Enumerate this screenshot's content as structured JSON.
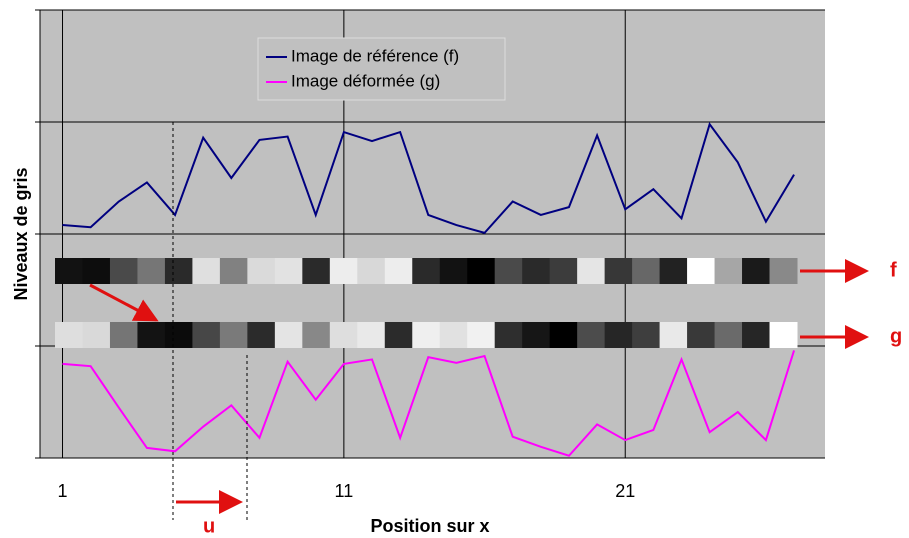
{
  "chart_data": {
    "type": "line",
    "x_label": "Position sur x",
    "y_label": "Niveaux de gris",
    "x": [
      1,
      2,
      3,
      4,
      5,
      6,
      7,
      8,
      9,
      10,
      11,
      12,
      13,
      14,
      15,
      16,
      17,
      18,
      19,
      20,
      21,
      22,
      23,
      24,
      25,
      26,
      27
    ],
    "series": [
      {
        "name": "Image de référence (f)",
        "color": "#000080",
        "values": [
          2.08,
          2.06,
          2.29,
          2.46,
          2.17,
          2.86,
          2.5,
          2.84,
          2.87,
          2.17,
          2.91,
          2.83,
          2.91,
          2.17,
          2.08,
          2.01,
          2.29,
          2.17,
          2.24,
          2.88,
          2.22,
          2.4,
          2.14,
          2.98,
          2.64,
          2.11,
          2.53
        ]
      },
      {
        "name": "Image déformée (g)",
        "color": "#ff00ff",
        "values": [
          0.84,
          0.82,
          0.45,
          0.09,
          0.06,
          0.28,
          0.47,
          0.18,
          0.86,
          0.52,
          0.84,
          0.88,
          0.18,
          0.9,
          0.85,
          0.91,
          0.19,
          0.1,
          0.02,
          0.3,
          0.16,
          0.25,
          0.88,
          0.23,
          0.41,
          0.16,
          0.96
        ]
      }
    ],
    "xlim": [
      0.2,
      28.1
    ],
    "xticks": [
      1,
      11,
      21
    ],
    "ylim": [
      0,
      4
    ],
    "yticks": [
      0,
      1,
      2,
      3,
      4
    ],
    "grid": true,
    "annotations": [
      "f",
      "g",
      "u"
    ]
  }
}
